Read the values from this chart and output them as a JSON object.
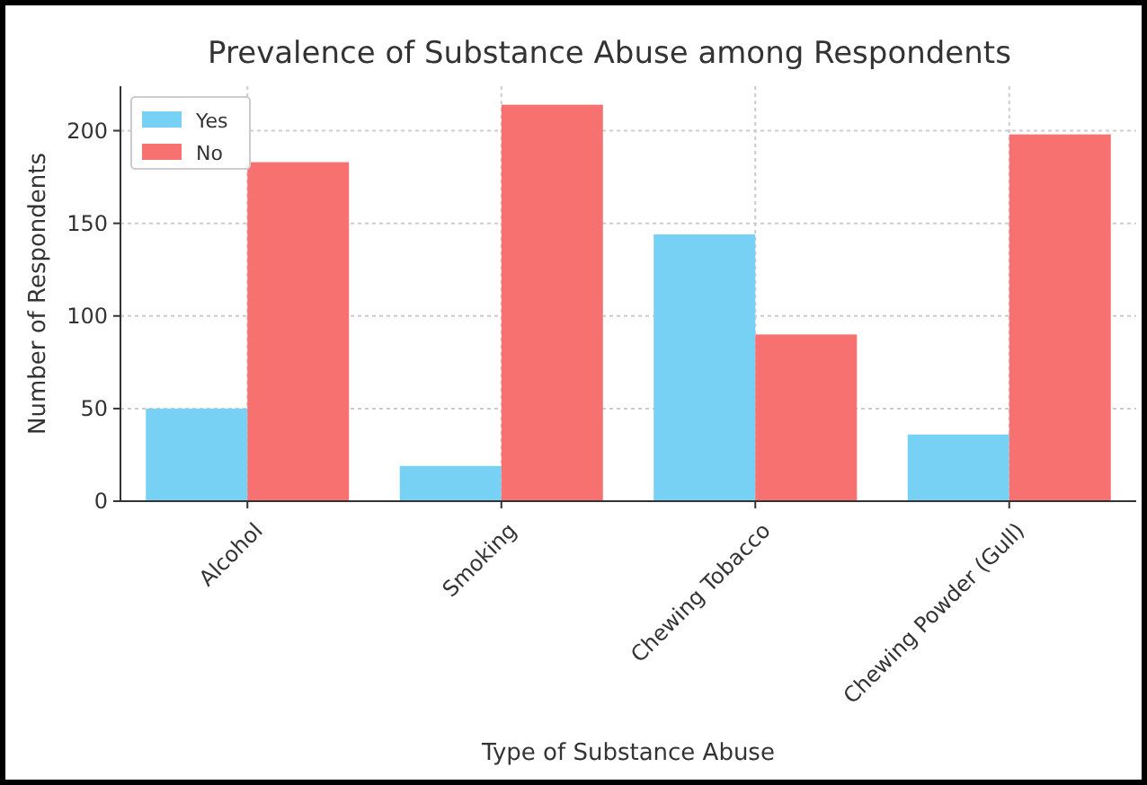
{
  "chart_data": {
    "type": "bar",
    "title": "Prevalence of Substance Abuse among Respondents",
    "xlabel": "Type of Substance Abuse",
    "ylabel": "Number of Respondents",
    "categories": [
      "Alcohol",
      "Smoking",
      "Chewing Tobacco",
      "Chewing Powder (Gull)"
    ],
    "series": [
      {
        "name": "Yes",
        "color": "#76d1f5",
        "values": [
          50,
          19,
          144,
          36
        ]
      },
      {
        "name": "No",
        "color": "#f87171",
        "values": [
          183,
          214,
          90,
          198
        ]
      }
    ],
    "ylim": [
      0,
      224
    ],
    "yticks": [
      0,
      50,
      100,
      150,
      200
    ],
    "grid": true,
    "legend": "top left"
  }
}
